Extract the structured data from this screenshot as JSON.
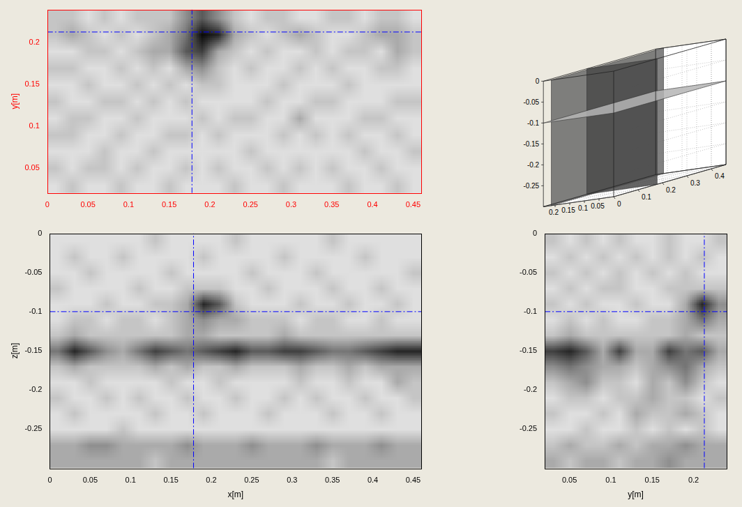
{
  "chart_data": [
    {
      "type": "heatmap",
      "ylabel": "y[m]",
      "color": "#ff0000",
      "grid": false,
      "xlim": [
        0,
        0.46
      ],
      "ylim": [
        0.02,
        0.24
      ],
      "xticks": [
        0,
        0.05,
        0.1,
        0.15,
        0.2,
        0.25,
        0.3,
        0.35,
        0.4,
        0.45
      ],
      "yticks": [
        0.05,
        0.1,
        0.15,
        0.2
      ],
      "clim": [
        0,
        9
      ],
      "crosshair": {
        "x": 0.178,
        "y": 0.213,
        "color": "#0000ff",
        "line_style": "dashdot"
      },
      "cells": [
        [
          1,
          2,
          1,
          1,
          2,
          1,
          1,
          2,
          1,
          1,
          1,
          2,
          1,
          1,
          2,
          1,
          1,
          1,
          2,
          1,
          1,
          2,
          1
        ],
        [
          2,
          1,
          2,
          2,
          1,
          2,
          1,
          1,
          2,
          1,
          2,
          1,
          1,
          2,
          1,
          2,
          1,
          2,
          1,
          1,
          2,
          1,
          1
        ],
        [
          1,
          1,
          1,
          2,
          1,
          1,
          2,
          1,
          1,
          1,
          1,
          1,
          2,
          1,
          1,
          1,
          1,
          1,
          1,
          2,
          1,
          1,
          2
        ],
        [
          2,
          2,
          1,
          1,
          2,
          1,
          1,
          2,
          2,
          1,
          2,
          1,
          1,
          1,
          2,
          1,
          2,
          1,
          2,
          1,
          1,
          2,
          1
        ],
        [
          1,
          2,
          2,
          1,
          1,
          2,
          1,
          1,
          1,
          2,
          1,
          2,
          2,
          1,
          1,
          3,
          1,
          1,
          1,
          2,
          2,
          1,
          1
        ],
        [
          2,
          1,
          1,
          2,
          2,
          1,
          2,
          1,
          2,
          1,
          1,
          1,
          1,
          2,
          1,
          1,
          2,
          2,
          1,
          1,
          1,
          2,
          2
        ],
        [
          1,
          1,
          2,
          1,
          1,
          2,
          1,
          2,
          1,
          2,
          2,
          1,
          1,
          1,
          2,
          1,
          1,
          1,
          2,
          1,
          1,
          1,
          1
        ],
        [
          2,
          2,
          1,
          1,
          2,
          1,
          2,
          1,
          3,
          4,
          2,
          1,
          2,
          1,
          1,
          2,
          1,
          2,
          1,
          1,
          2,
          2,
          1
        ],
        [
          1,
          1,
          2,
          2,
          1,
          2,
          3,
          3,
          6,
          7,
          3,
          2,
          1,
          2,
          1,
          1,
          2,
          1,
          2,
          2,
          1,
          3,
          2
        ],
        [
          2,
          3,
          2,
          1,
          2,
          1,
          2,
          3,
          5,
          9,
          8,
          3,
          2,
          1,
          2,
          3,
          2,
          1,
          1,
          2,
          3,
          3,
          2
        ],
        [
          2,
          2,
          1,
          2,
          1,
          2,
          2,
          2,
          4,
          6,
          4,
          2,
          1,
          2,
          2,
          1,
          1,
          2,
          2,
          1,
          2,
          2,
          1
        ]
      ]
    },
    {
      "type": "heatmap",
      "xlabel": "x[m]",
      "ylabel": "z[m]",
      "color": "#000000",
      "grid": false,
      "xlim": [
        0,
        0.46
      ],
      "ylim": [
        -0.3,
        0
      ],
      "xticks": [
        0,
        0.05,
        0.1,
        0.15,
        0.2,
        0.25,
        0.3,
        0.35,
        0.4,
        0.45
      ],
      "yticks": [
        -0.25,
        -0.2,
        -0.15,
        -0.1,
        -0.05,
        0
      ],
      "clim": [
        0,
        9
      ],
      "crosshair": {
        "x": 0.178,
        "y": -0.1,
        "color": "#0000ff",
        "line_style": "dashdot"
      },
      "cells": [
        [
          3,
          3,
          3,
          3,
          3,
          3,
          2,
          3,
          3,
          3,
          3,
          3,
          3,
          3,
          3,
          3,
          3,
          2,
          3,
          3,
          3,
          3,
          3
        ],
        [
          3,
          3,
          4,
          4,
          3,
          3,
          3,
          3,
          4,
          3,
          3,
          3,
          4,
          3,
          3,
          3,
          4,
          3,
          3,
          3,
          4,
          3,
          3
        ],
        [
          1,
          1,
          1,
          1,
          2,
          1,
          1,
          1,
          1,
          1,
          1,
          1,
          1,
          1,
          1,
          1,
          1,
          1,
          1,
          1,
          1,
          1,
          1
        ],
        [
          1,
          2,
          1,
          1,
          1,
          1,
          2,
          1,
          1,
          2,
          1,
          1,
          1,
          2,
          1,
          1,
          1,
          2,
          1,
          1,
          2,
          1,
          1
        ],
        [
          2,
          1,
          1,
          2,
          1,
          2,
          1,
          1,
          2,
          1,
          1,
          2,
          1,
          1,
          2,
          1,
          2,
          1,
          1,
          2,
          1,
          1,
          2
        ],
        [
          1,
          1,
          2,
          1,
          1,
          1,
          1,
          2,
          1,
          1,
          2,
          1,
          1,
          1,
          1,
          2,
          1,
          1,
          2,
          1,
          1,
          3,
          2
        ],
        [
          2,
          3,
          2,
          2,
          2,
          2,
          3,
          2,
          3,
          2,
          2,
          3,
          2,
          2,
          2,
          3,
          2,
          2,
          3,
          2,
          3,
          3,
          3
        ],
        [
          5,
          8,
          6,
          4,
          3,
          5,
          7,
          6,
          5,
          6,
          7,
          8,
          6,
          6,
          7,
          7,
          6,
          5,
          5,
          6,
          7,
          8,
          8
        ],
        [
          2,
          3,
          2,
          2,
          2,
          2,
          2,
          2,
          3,
          3,
          2,
          2,
          2,
          2,
          3,
          2,
          2,
          2,
          2,
          2,
          2,
          2,
          2
        ],
        [
          1,
          2,
          2,
          1,
          2,
          2,
          1,
          2,
          3,
          4,
          3,
          3,
          2,
          2,
          2,
          1,
          2,
          2,
          1,
          1,
          2,
          1,
          1
        ],
        [
          1,
          1,
          1,
          2,
          1,
          1,
          2,
          2,
          3,
          8,
          6,
          2,
          1,
          1,
          1,
          2,
          1,
          1,
          2,
          1,
          1,
          2,
          1
        ],
        [
          2,
          1,
          1,
          1,
          1,
          2,
          1,
          1,
          2,
          2,
          2,
          1,
          1,
          2,
          1,
          1,
          1,
          2,
          1,
          1,
          2,
          1,
          1
        ],
        [
          1,
          1,
          2,
          1,
          1,
          1,
          1,
          2,
          1,
          1,
          1,
          1,
          2,
          1,
          1,
          1,
          2,
          1,
          1,
          1,
          1,
          1,
          2
        ],
        [
          1,
          2,
          1,
          1,
          2,
          1,
          1,
          1,
          1,
          2,
          1,
          1,
          1,
          1,
          2,
          1,
          1,
          1,
          1,
          2,
          1,
          1,
          1
        ],
        [
          1,
          1,
          1,
          1,
          1,
          1,
          2,
          1,
          1,
          1,
          1,
          2,
          1,
          1,
          1,
          1,
          1,
          2,
          1,
          1,
          1,
          1,
          1
        ]
      ]
    },
    {
      "type": "heatmap",
      "xlabel": "y[m]",
      "color": "#000000",
      "grid": false,
      "xlim": [
        0.02,
        0.24
      ],
      "ylim": [
        -0.3,
        0
      ],
      "xticks": [
        0.05,
        0.1,
        0.15,
        0.2
      ],
      "yticks": [
        -0.25,
        -0.2,
        -0.15,
        -0.1,
        -0.05,
        0
      ],
      "clim": [
        0,
        9
      ],
      "crosshair": {
        "x": 0.213,
        "y": -0.1,
        "color": "#0000ff",
        "line_style": "dashdot"
      },
      "cells": [
        [
          3,
          2,
          3,
          3,
          2,
          3,
          3,
          4,
          3,
          3,
          3
        ],
        [
          2,
          3,
          2,
          2,
          3,
          2,
          3,
          3,
          4,
          3,
          3
        ],
        [
          1,
          1,
          2,
          1,
          1,
          2,
          1,
          2,
          1,
          2,
          1
        ],
        [
          2,
          1,
          1,
          2,
          1,
          3,
          2,
          2,
          3,
          2,
          1
        ],
        [
          1,
          2,
          2,
          1,
          2,
          2,
          3,
          2,
          2,
          1,
          2
        ],
        [
          2,
          3,
          4,
          2,
          2,
          1,
          3,
          2,
          4,
          2,
          1
        ],
        [
          4,
          5,
          4,
          3,
          3,
          2,
          3,
          4,
          5,
          3,
          2
        ],
        [
          7,
          8,
          6,
          3,
          7,
          3,
          3,
          7,
          5,
          6,
          3
        ],
        [
          2,
          3,
          2,
          2,
          2,
          2,
          2,
          2,
          3,
          2,
          2
        ],
        [
          1,
          2,
          1,
          2,
          1,
          1,
          2,
          2,
          3,
          5,
          3
        ],
        [
          2,
          1,
          2,
          1,
          1,
          2,
          1,
          1,
          3,
          8,
          4
        ],
        [
          1,
          2,
          1,
          2,
          2,
          1,
          1,
          2,
          2,
          2,
          2
        ],
        [
          2,
          1,
          2,
          1,
          2,
          1,
          2,
          1,
          2,
          1,
          1
        ],
        [
          1,
          2,
          1,
          2,
          1,
          2,
          1,
          2,
          1,
          2,
          1
        ],
        [
          2,
          1,
          2,
          1,
          2,
          1,
          1,
          2,
          1,
          1,
          2
        ]
      ]
    },
    {
      "type": "box3d",
      "color": "#000000",
      "xlim": [
        0,
        0.46
      ],
      "ylim": [
        0,
        0.24
      ],
      "zlim": [
        -0.3,
        0
      ],
      "xticks": [
        0,
        0.1,
        0.2,
        0.3,
        0.4
      ],
      "yticks": [
        0.05,
        0.1,
        0.15,
        0.2
      ],
      "zticks": [
        0,
        -0.05,
        -0.1,
        -0.15,
        -0.2,
        -0.25
      ],
      "slices": {
        "x": 0.178,
        "y": 0.213,
        "z": -0.1
      }
    }
  ]
}
